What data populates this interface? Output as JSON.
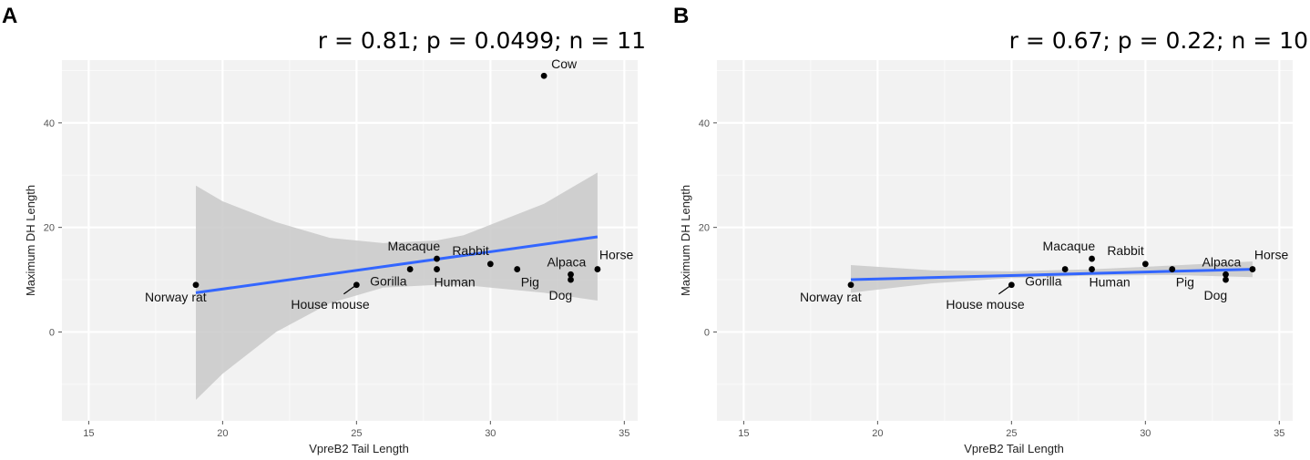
{
  "panels": [
    {
      "letter": "A",
      "stat_label": "r = 0.81; p = 0.0499; n = 11",
      "chart_data": {
        "type": "scatter",
        "title": "r = 0.81; p = 0.0499; n = 11",
        "xlabel": "VpreB2 Tail Length",
        "ylabel": "Maximum DH Length",
        "xlim": [
          14,
          35.5
        ],
        "ylim": [
          -17,
          52
        ],
        "xticks": [
          15,
          20,
          25,
          30,
          35
        ],
        "yticks": [
          0,
          20,
          40
        ],
        "grid": true,
        "points": [
          {
            "label": "Norway rat",
            "x": 19,
            "y": 9
          },
          {
            "label": "House mouse",
            "x": 25,
            "y": 9
          },
          {
            "label": "Gorilla",
            "x": 27,
            "y": 12
          },
          {
            "label": "Macaque",
            "x": 28,
            "y": 14
          },
          {
            "label": "Human",
            "x": 28,
            "y": 12
          },
          {
            "label": "Rabbit",
            "x": 30,
            "y": 13
          },
          {
            "label": "Pig",
            "x": 31,
            "y": 12
          },
          {
            "label": "Alpaca",
            "x": 33,
            "y": 11
          },
          {
            "label": "Dog",
            "x": 33,
            "y": 10
          },
          {
            "label": "Horse",
            "x": 34,
            "y": 12
          },
          {
            "label": "Cow",
            "x": 32,
            "y": 49
          }
        ],
        "fit": {
          "x": [
            19,
            34
          ],
          "y": [
            7.5,
            18.2
          ]
        },
        "ci": {
          "x": [
            19,
            20,
            22,
            24,
            26,
            28,
            29,
            30,
            32,
            34
          ],
          "lower": [
            -13,
            -8,
            0,
            5.5,
            8.5,
            9,
            9,
            8.5,
            7.5,
            6
          ],
          "upper": [
            28,
            25,
            21,
            18,
            17,
            17.5,
            18.5,
            20.5,
            24.5,
            30.5
          ]
        }
      }
    },
    {
      "letter": "B",
      "stat_label": "r = 0.67; p = 0.22; n = 10",
      "chart_data": {
        "type": "scatter",
        "title": "r = 0.67; p = 0.22; n = 10",
        "xlabel": "VpreB2 Tail Length",
        "ylabel": "Maximum DH Length",
        "xlim": [
          14,
          35.5
        ],
        "ylim": [
          -17,
          52
        ],
        "xticks": [
          15,
          20,
          25,
          30,
          35
        ],
        "yticks": [
          0,
          20,
          40
        ],
        "grid": true,
        "points": [
          {
            "label": "Norway rat",
            "x": 19,
            "y": 9
          },
          {
            "label": "House mouse",
            "x": 25,
            "y": 9
          },
          {
            "label": "Gorilla",
            "x": 27,
            "y": 12
          },
          {
            "label": "Macaque",
            "x": 28,
            "y": 14
          },
          {
            "label": "Human",
            "x": 28,
            "y": 12
          },
          {
            "label": "Rabbit",
            "x": 30,
            "y": 13
          },
          {
            "label": "Pig",
            "x": 31,
            "y": 12
          },
          {
            "label": "Alpaca",
            "x": 33,
            "y": 11
          },
          {
            "label": "Dog",
            "x": 33,
            "y": 10
          },
          {
            "label": "Horse",
            "x": 34,
            "y": 12
          }
        ],
        "fit": {
          "x": [
            19,
            34
          ],
          "y": [
            10,
            12
          ]
        },
        "ci": {
          "x": [
            19,
            22,
            25,
            28,
            31,
            34
          ],
          "lower": [
            7.5,
            9.3,
            10.3,
            10.8,
            10.9,
            10.5
          ],
          "upper": [
            12.8,
            11.8,
            11.6,
            12,
            12.7,
            13.5
          ]
        }
      }
    }
  ]
}
